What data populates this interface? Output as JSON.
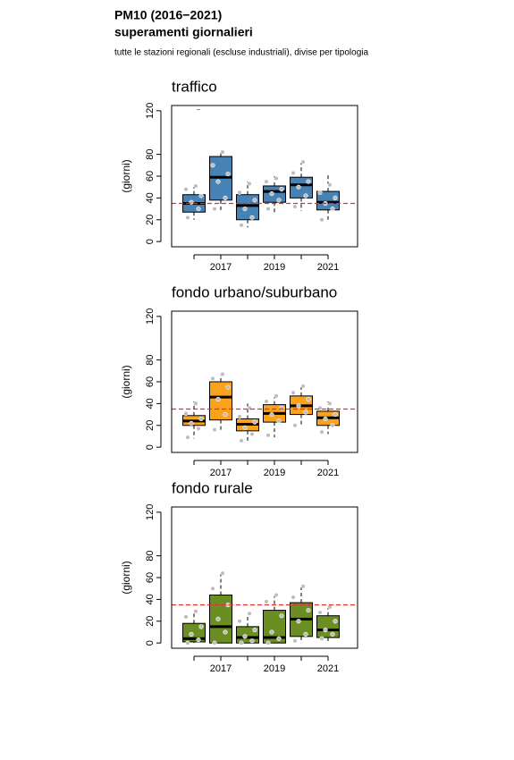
{
  "header": {
    "title": "PM10 (2016−2021)",
    "subtitle": "superamenti giornalieri",
    "note": "tutte le stazioni regionali (escluse industriali), divise per tipologia"
  },
  "chart_data": [
    {
      "type": "box",
      "title": "traffico",
      "ylabel": "(giorni)",
      "categories": [
        null,
        "2017",
        null,
        "2019",
        null,
        "2021"
      ],
      "color": "#4682b4",
      "ylim": [
        -4.8,
        124.8
      ],
      "yticks": [
        0,
        20,
        40,
        60,
        80,
        120
      ],
      "hline": {
        "value": 35,
        "color": "#e03030"
      },
      "boxes": [
        {
          "low": 20,
          "q1": 27,
          "median": 35,
          "q3": 43,
          "high": 52,
          "points": [
            22,
            30,
            36,
            42,
            48,
            51
          ],
          "outliers": [
            121
          ]
        },
        {
          "low": 28,
          "q1": 38,
          "median": 59,
          "q3": 78,
          "high": 83,
          "points": [
            30,
            40,
            55,
            62,
            70,
            82
          ],
          "outliers": []
        },
        {
          "low": 13,
          "q1": 20,
          "median": 33,
          "q3": 43,
          "high": 55,
          "points": [
            15,
            22,
            30,
            38,
            45,
            53
          ],
          "outliers": []
        },
        {
          "low": 27,
          "q1": 36,
          "median": 46,
          "q3": 51,
          "high": 60,
          "points": [
            30,
            38,
            44,
            48,
            55,
            58
          ],
          "outliers": []
        },
        {
          "low": 28,
          "q1": 40,
          "median": 52,
          "q3": 59,
          "high": 75,
          "points": [
            32,
            42,
            50,
            55,
            63,
            73
          ],
          "outliers": []
        },
        {
          "low": 19,
          "q1": 29,
          "median": 36,
          "q3": 46,
          "high": 62,
          "points": [
            20,
            30,
            35,
            40,
            45,
            52
          ],
          "outliers": []
        }
      ]
    },
    {
      "type": "box",
      "title": "fondo urbano/suburbano",
      "ylabel": "(giorni)",
      "categories": [
        null,
        "2017",
        null,
        "2019",
        null,
        "2021"
      ],
      "color": "#f9a21b",
      "ylim": [
        -4.8,
        124.8
      ],
      "yticks": [
        0,
        20,
        40,
        60,
        80,
        120
      ],
      "hline": {
        "value": 35,
        "color": "#e03030"
      },
      "boxes": [
        {
          "low": 8,
          "q1": 20,
          "median": 24,
          "q3": 29,
          "high": 42,
          "points": [
            9,
            17,
            22,
            26,
            31,
            40
          ],
          "outliers": []
        },
        {
          "low": 14,
          "q1": 25,
          "median": 46,
          "q3": 60,
          "high": 68,
          "points": [
            16,
            30,
            44,
            55,
            63,
            67
          ],
          "outliers": []
        },
        {
          "low": 5,
          "q1": 15,
          "median": 21,
          "q3": 26,
          "high": 40,
          "points": [
            6,
            12,
            18,
            23,
            28,
            36
          ],
          "outliers": []
        },
        {
          "low": 9,
          "q1": 23,
          "median": 31,
          "q3": 39,
          "high": 48,
          "points": [
            11,
            24,
            30,
            36,
            42,
            47
          ],
          "outliers": []
        },
        {
          "low": 19,
          "q1": 30,
          "median": 38,
          "q3": 47,
          "high": 57,
          "points": [
            20,
            32,
            38,
            44,
            50,
            56
          ],
          "outliers": []
        },
        {
          "low": 12,
          "q1": 20,
          "median": 27,
          "q3": 33,
          "high": 42,
          "points": [
            14,
            20,
            26,
            30,
            36,
            40
          ],
          "outliers": []
        }
      ]
    },
    {
      "type": "box",
      "title": "fondo rurale",
      "ylabel": "(giorni)",
      "categories": [
        null,
        "2017",
        null,
        "2019",
        null,
        "2021"
      ],
      "color": "#6b8e23",
      "ylim": [
        -4.8,
        124.8
      ],
      "yticks": [
        0,
        20,
        40,
        60,
        80,
        120
      ],
      "hline": {
        "value": 35,
        "color": "#e03030"
      },
      "boxes": [
        {
          "low": 0,
          "q1": 1,
          "median": 4,
          "q3": 18,
          "high": 30,
          "points": [
            0,
            3,
            8,
            15,
            24,
            29
          ],
          "outliers": []
        },
        {
          "low": 0,
          "q1": 0,
          "median": 15,
          "q3": 44,
          "high": 66,
          "points": [
            0,
            10,
            22,
            35,
            50,
            64
          ],
          "outliers": []
        },
        {
          "low": 0,
          "q1": 0,
          "median": 5,
          "q3": 15,
          "high": 28,
          "points": [
            0,
            2,
            6,
            12,
            20,
            27
          ],
          "outliers": []
        },
        {
          "low": 0,
          "q1": 0,
          "median": 5,
          "q3": 30,
          "high": 45,
          "points": [
            0,
            4,
            10,
            25,
            38,
            44
          ],
          "outliers": []
        },
        {
          "low": 0,
          "q1": 6,
          "median": 22,
          "q3": 37,
          "high": 54,
          "points": [
            2,
            8,
            20,
            30,
            42,
            52
          ],
          "outliers": []
        },
        {
          "low": 0,
          "q1": 5,
          "median": 12,
          "q3": 25,
          "high": 35,
          "points": [
            4,
            8,
            12,
            20,
            28,
            33
          ],
          "outliers": []
        }
      ]
    }
  ]
}
